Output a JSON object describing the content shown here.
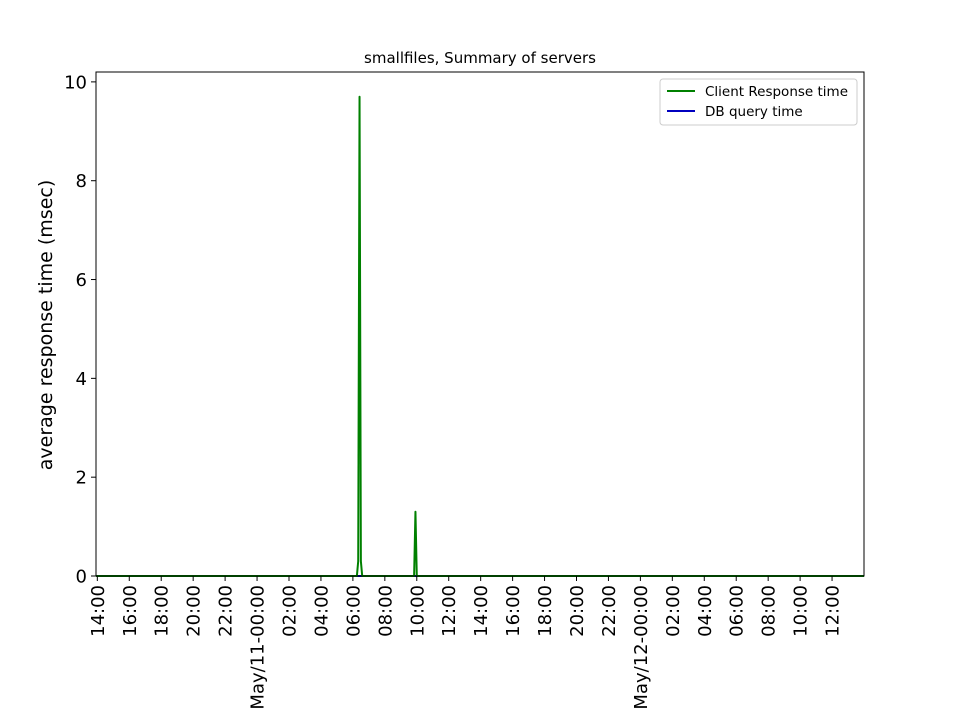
{
  "chart_data": {
    "type": "line",
    "title": "smallfiles, Summary of servers",
    "xlabel": "",
    "ylabel": "average response time (msec)",
    "xlim": [
      "May/10-13:55",
      "May/12-14:00"
    ],
    "ylim": [
      0,
      10.2
    ],
    "yticks": [
      0,
      2,
      4,
      6,
      8,
      10
    ],
    "xticks": [
      {
        "at": "May/10-14:00",
        "label": "14:00"
      },
      {
        "at": "May/10-16:00",
        "label": "16:00"
      },
      {
        "at": "May/10-18:00",
        "label": "18:00"
      },
      {
        "at": "May/10-20:00",
        "label": "20:00"
      },
      {
        "at": "May/10-22:00",
        "label": "22:00"
      },
      {
        "at": "May/11-00:00",
        "label": "May/11-00:00"
      },
      {
        "at": "May/11-02:00",
        "label": "02:00"
      },
      {
        "at": "May/11-04:00",
        "label": "04:00"
      },
      {
        "at": "May/11-06:00",
        "label": "06:00"
      },
      {
        "at": "May/11-08:00",
        "label": "08:00"
      },
      {
        "at": "May/11-10:00",
        "label": "10:00"
      },
      {
        "at": "May/11-12:00",
        "label": "12:00"
      },
      {
        "at": "May/11-14:00",
        "label": "14:00"
      },
      {
        "at": "May/11-16:00",
        "label": "16:00"
      },
      {
        "at": "May/11-18:00",
        "label": "18:00"
      },
      {
        "at": "May/11-20:00",
        "label": "20:00"
      },
      {
        "at": "May/11-22:00",
        "label": "22:00"
      },
      {
        "at": "May/12-00:00",
        "label": "May/12-00:00"
      },
      {
        "at": "May/12-02:00",
        "label": "02:00"
      },
      {
        "at": "May/12-04:00",
        "label": "04:00"
      },
      {
        "at": "May/12-06:00",
        "label": "06:00"
      },
      {
        "at": "May/12-08:00",
        "label": "08:00"
      },
      {
        "at": "May/12-10:00",
        "label": "10:00"
      },
      {
        "at": "May/12-12:00",
        "label": "12:00"
      }
    ],
    "legend": {
      "placement": "top-right"
    },
    "grid": false,
    "series": [
      {
        "name": "Client Response time",
        "color": "#008000",
        "points": [
          [
            "May/10-13:55",
            0
          ],
          [
            "May/11-06:15",
            0
          ],
          [
            "May/11-06:20",
            0.3
          ],
          [
            "May/11-06:25",
            9.7
          ],
          [
            "May/11-06:30",
            0.3
          ],
          [
            "May/11-06:35",
            0
          ],
          [
            "May/11-09:50",
            0
          ],
          [
            "May/11-09:55",
            1.3
          ],
          [
            "May/11-10:00",
            0
          ],
          [
            "May/12-14:00",
            0
          ]
        ]
      },
      {
        "name": "DB query time",
        "color": "#0000bf",
        "points": [
          [
            "May/10-13:55",
            0
          ],
          [
            "May/12-14:00",
            0
          ]
        ]
      }
    ]
  }
}
